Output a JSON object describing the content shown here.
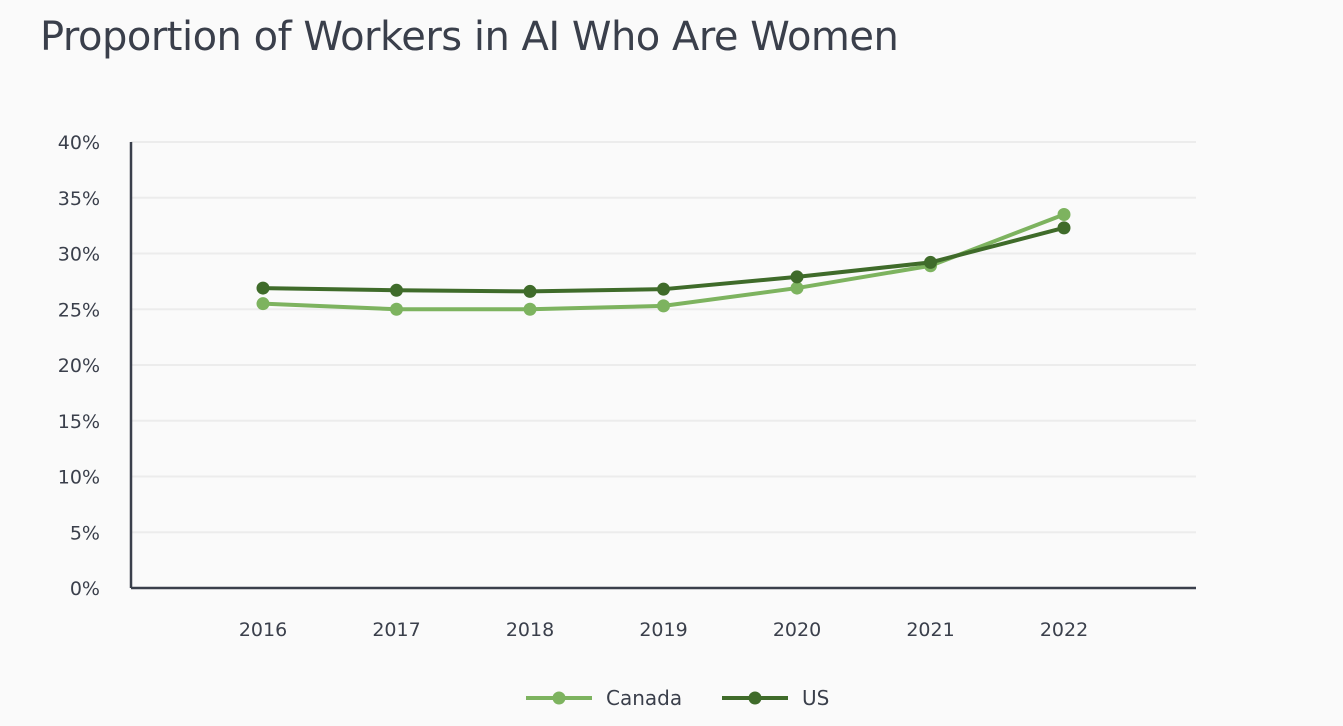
{
  "chart_data": {
    "type": "line",
    "title": "Proportion of Workers in AI Who Are Women",
    "xlabel": "",
    "ylabel": "",
    "categories": [
      "2016",
      "2017",
      "2018",
      "2019",
      "2020",
      "2021",
      "2022"
    ],
    "y_ticks": [
      "0%",
      "5%",
      "10%",
      "15%",
      "20%",
      "25%",
      "30%",
      "35%",
      "40%"
    ],
    "ylim": [
      0,
      40
    ],
    "grid": true,
    "legend_position": "bottom-center",
    "series": [
      {
        "name": "Canada",
        "color": "#7db35f",
        "values": [
          25.5,
          25.0,
          25.0,
          25.3,
          26.9,
          28.9,
          33.5
        ]
      },
      {
        "name": "US",
        "color": "#3f6b2a",
        "values": [
          26.9,
          26.7,
          26.6,
          26.8,
          27.9,
          29.2,
          32.3
        ]
      }
    ]
  }
}
